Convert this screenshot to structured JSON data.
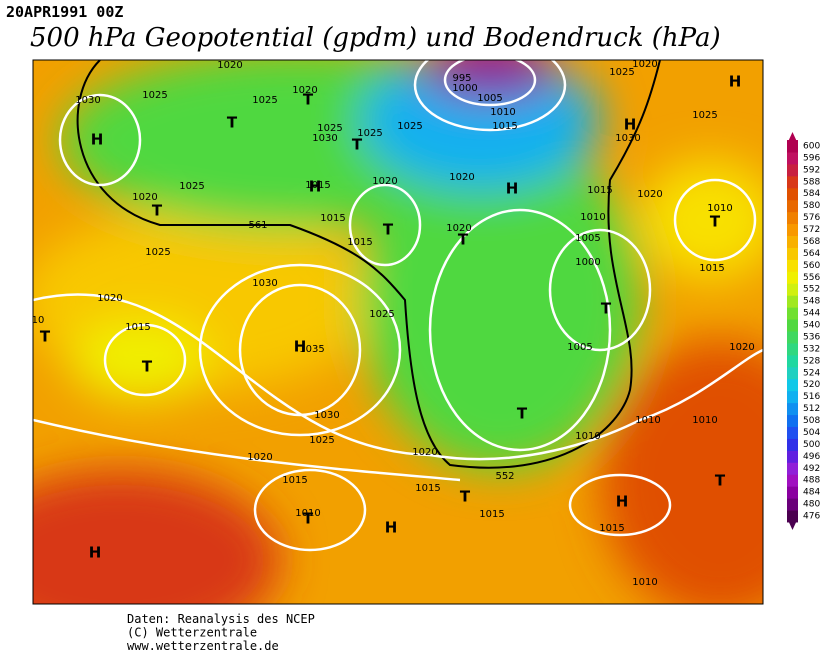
{
  "header": {
    "date": "20APR1991 00Z",
    "title": "500 hPa Geopotential (gpdm) und Bodendruck (hPa)"
  },
  "map": {
    "labels": [
      "1025",
      "1030",
      "1020",
      "1025",
      "1020",
      "1025",
      "1030",
      "1025",
      "1025",
      "995",
      "1000",
      "1005",
      "1010",
      "1015",
      "1025",
      "1020",
      "1030",
      "1025",
      "1025",
      "1020",
      "1015",
      "1020",
      "1015",
      "1015",
      "1020",
      "1020",
      "1015",
      "1010",
      "1005",
      "1000",
      "1020",
      "1010",
      "1015",
      "1025",
      "1020",
      "1030",
      "1015",
      "10",
      "1035",
      "1025",
      "1005",
      "1020",
      "1030",
      "1025",
      "1020",
      "1020",
      "1010",
      "1010",
      "1010",
      "1015",
      "1015",
      "1015",
      "1015",
      "1010",
      "1010",
      "561",
      "552"
    ],
    "centers": [
      "H",
      "T",
      "T",
      "T",
      "H",
      "T",
      "T",
      "T",
      "H",
      "H",
      "H",
      "T",
      "T",
      "T",
      "T",
      "H",
      "T",
      "T",
      "T",
      "H",
      "H",
      "T",
      "H"
    ]
  },
  "colorbar": {
    "levels": [
      476,
      480,
      484,
      488,
      492,
      496,
      500,
      504,
      508,
      512,
      516,
      520,
      524,
      528,
      532,
      536,
      540,
      544,
      548,
      552,
      556,
      560,
      564,
      568,
      572,
      576,
      580,
      584,
      588,
      592,
      596,
      600
    ],
    "colors": [
      "#4b0050",
      "#6a007a",
      "#8a00a0",
      "#a010c0",
      "#9020d8",
      "#6020e0",
      "#3030e8",
      "#2050f0",
      "#1070f0",
      "#1090f0",
      "#10b0f0",
      "#10c8e8",
      "#20d0c0",
      "#20d8a0",
      "#30d880",
      "#40d860",
      "#50d840",
      "#70e030",
      "#a0e820",
      "#d0f010",
      "#f0f000",
      "#f8e000",
      "#f8c800",
      "#f8b000",
      "#f89800",
      "#f08000",
      "#e86800",
      "#e05000",
      "#d83818",
      "#c82040",
      "#c01060",
      "#b00050"
    ]
  },
  "footer": [
    "Daten: Reanalysis des NCEP",
    "(C) Wetterzentrale",
    "www.wetterzentrale.de"
  ]
}
